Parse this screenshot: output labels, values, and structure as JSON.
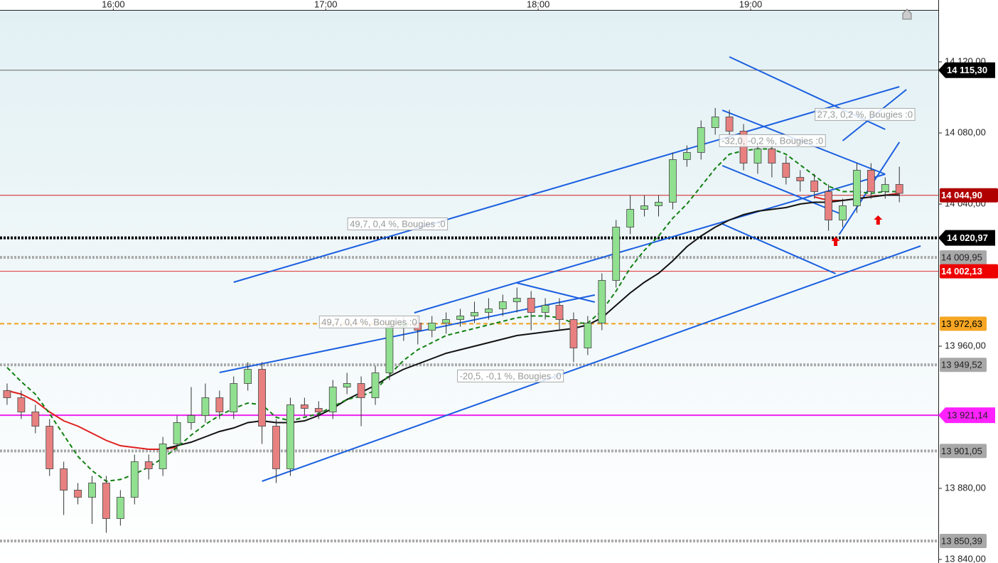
{
  "chart_data": {
    "type": "candlestick",
    "x": [
      "15:30",
      "15:34",
      "15:38",
      "15:42",
      "15:46",
      "15:50",
      "15:54",
      "15:58",
      "16:02",
      "16:06",
      "16:10",
      "16:14",
      "16:18",
      "16:22",
      "16:26",
      "16:30",
      "16:34",
      "16:38",
      "16:42",
      "16:46",
      "16:50",
      "16:54",
      "16:58",
      "17:02",
      "17:06",
      "17:10",
      "17:14",
      "17:18",
      "17:22",
      "17:26",
      "17:30",
      "17:34",
      "17:38",
      "17:42",
      "17:46",
      "17:50",
      "17:54",
      "17:58",
      "18:02",
      "18:06",
      "18:10",
      "18:14",
      "18:18",
      "18:22",
      "18:26",
      "18:30",
      "18:34",
      "18:38",
      "18:42",
      "18:46",
      "18:50",
      "18:54",
      "18:58",
      "19:02",
      "19:06",
      "19:10",
      "19:14",
      "19:18",
      "19:22",
      "19:26",
      "19:30",
      "19:34",
      "19:38",
      "19:42"
    ],
    "open": [
      13935,
      13931,
      13923,
      13915,
      13891,
      13879,
      13875,
      13883,
      13863,
      13875,
      13895,
      13891,
      13905,
      13917,
      13921,
      13931,
      13923,
      13939,
      13947,
      13915,
      13891,
      13927,
      13925,
      13923,
      13937,
      13939,
      13931,
      13945,
      13971,
      13973,
      13969,
      13973,
      13975,
      13977,
      13979,
      13981,
      13985,
      13987,
      13979,
      13983,
      13975,
      13959,
      13973,
      13997,
      14027,
      14037,
      14039,
      14041,
      14065,
      14069,
      14083,
      14089,
      14081,
      14063,
      14071,
      14063,
      14055,
      14053,
      14047,
      14031,
      14039,
      14059,
      14047,
      14051
    ],
    "high": [
      13939,
      13935,
      13927,
      13919,
      13895,
      13883,
      13887,
      13887,
      13879,
      13899,
      13899,
      13909,
      13921,
      13937,
      13939,
      13935,
      13943,
      13951,
      13951,
      13919,
      13931,
      13931,
      13929,
      13941,
      13945,
      13943,
      13949,
      13975,
      13977,
      13977,
      13977,
      13979,
      13981,
      13985,
      13987,
      13989,
      13993,
      13991,
      13987,
      13987,
      13979,
      13977,
      14001,
      14031,
      14045,
      14045,
      14045,
      14069,
      14073,
      14087,
      14094,
      14093,
      14085,
      14075,
      14075,
      14067,
      14059,
      14057,
      14051,
      14043,
      14063,
      14063,
      14055,
      14061
    ],
    "low": [
      13927,
      13919,
      13911,
      13887,
      13865,
      13871,
      13860,
      13855,
      13859,
      13871,
      13885,
      13887,
      13901,
      13913,
      13917,
      13919,
      13919,
      13935,
      13905,
      13883,
      13887,
      13921,
      13919,
      13919,
      13933,
      13915,
      13927,
      13941,
      13963,
      13961,
      13965,
      13967,
      13971,
      13973,
      13975,
      13977,
      13979,
      13969,
      13975,
      13969,
      13951,
      13955,
      13969,
      13993,
      14023,
      14033,
      14033,
      14037,
      14061,
      14065,
      14079,
      14077,
      14059,
      14057,
      14055,
      14051,
      14047,
      14043,
      14025,
      14027,
      14035,
      14043,
      14043,
      14041
    ],
    "close": [
      13931,
      13923,
      13915,
      13891,
      13879,
      13875,
      13883,
      13863,
      13875,
      13895,
      13891,
      13905,
      13917,
      13921,
      13931,
      13923,
      13939,
      13947,
      13915,
      13891,
      13927,
      13925,
      13923,
      13937,
      13939,
      13931,
      13945,
      13971,
      13973,
      13969,
      13973,
      13975,
      13977,
      13979,
      13981,
      13985,
      13987,
      13979,
      13983,
      13975,
      13959,
      13973,
      13997,
      14027,
      14037,
      14039,
      14041,
      14065,
      14069,
      14083,
      14089,
      14081,
      14063,
      14071,
      14063,
      14055,
      14053,
      14047,
      14031,
      14039,
      14059,
      14047,
      14051,
      14046
    ],
    "up_color": "#90e090",
    "down_color": "#e88080",
    "xlim": [
      "15:28",
      "19:53"
    ],
    "xticks": [
      "16:00",
      "17:00",
      "18:00",
      "19:00"
    ],
    "ylim": [
      13838,
      14148.8
    ],
    "yticks": [
      {
        "value": 13840,
        "label": "13 840,00"
      },
      {
        "value": 13880,
        "label": "13 880,00"
      },
      {
        "value": 13960,
        "label": "13 960,00"
      },
      {
        "value": 14040,
        "label": "14 040,00"
      },
      {
        "value": 14080,
        "label": "14 080,00"
      },
      {
        "value": 14120,
        "label": "14 120,00"
      }
    ],
    "series": [
      {
        "color": "#e02020",
        "style": "solid",
        "values": [
          13935,
          13933,
          13929,
          13923,
          13918,
          13915,
          13911,
          13907,
          13904,
          13903,
          13902,
          13902,
          13903,
          null,
          null,
          null,
          null,
          null,
          null,
          null,
          null,
          null,
          null,
          null,
          null,
          null,
          null,
          null,
          null,
          null,
          null,
          null,
          null,
          null,
          null,
          null,
          null,
          null,
          null,
          null,
          null,
          null,
          null,
          null,
          null,
          null,
          null,
          null,
          null,
          null,
          null,
          null,
          null,
          null,
          null,
          null,
          null,
          14044,
          14042,
          14042,
          14043,
          14044,
          14045,
          14046
        ]
      },
      {
        "color": "#111111",
        "style": "solid",
        "values": [
          null,
          null,
          null,
          null,
          null,
          null,
          null,
          null,
          null,
          null,
          null,
          13902,
          13904,
          13906,
          13909,
          13912,
          13914,
          13917,
          13918,
          13917,
          13917,
          13918,
          13921,
          13925,
          13930,
          13934,
          13938,
          13943,
          13947,
          13950,
          13953,
          13956,
          13958,
          13960,
          13962,
          13964,
          13966,
          13967,
          13968,
          13969,
          13970,
          13972,
          13976,
          13983,
          13990,
          13996,
          14001,
          14008,
          14016,
          14022,
          14027,
          14031,
          14034,
          14036,
          14037,
          14038,
          14040,
          14041,
          14041,
          14042,
          14043,
          14044,
          14045,
          14045
        ]
      },
      {
        "color": "#108010",
        "style": "dashed",
        "values": [
          13948,
          13940,
          13933,
          13922,
          13910,
          13898,
          13890,
          13884,
          13885,
          13888,
          13892,
          13897,
          13903,
          13910,
          13916,
          13921,
          13925,
          13928,
          13927,
          13920,
          13918,
          13920,
          13922,
          13926,
          13930,
          13932,
          13935,
          13944,
          13952,
          13958,
          13962,
          13966,
          13968,
          13970,
          13972,
          13974,
          13976,
          13977,
          13977,
          13976,
          13973,
          13973,
          13980,
          13991,
          14004,
          14014,
          14022,
          14032,
          14040,
          14050,
          14060,
          14068,
          14070,
          14071,
          14071,
          14068,
          14062,
          14056,
          14050,
          14047,
          14047,
          14046,
          14047,
          14047
        ]
      }
    ],
    "levels": [
      {
        "value": 14115.3,
        "label": "14 115,30",
        "color": "#666666",
        "style": "solid",
        "tag_bg": "#000000",
        "tag_fg": "#ffffff",
        "arrow": true
      },
      {
        "value": 14044.9,
        "label": "14 044,90",
        "color": "#d02020",
        "style": "solid",
        "tag_bg": "#b00000",
        "tag_fg": "#ffffff",
        "arrow": false
      },
      {
        "value": 14020.97,
        "label": "14 020,97",
        "color": "#000000",
        "style": "dotted",
        "tag_bg": "#000000",
        "tag_fg": "#ffffff",
        "arrow": true
      },
      {
        "value": 14009.95,
        "label": "14 009,95",
        "color": "#aaaaaa",
        "style": "dotted",
        "tag_bg": "#a8a8a8",
        "tag_fg": "#222222",
        "arrow": false
      },
      {
        "value": 14002.13,
        "label": "14 002,13",
        "color": "#e03030",
        "style": "solid",
        "tag_bg": "#ee0000",
        "tag_fg": "#ffffff",
        "arrow": false
      },
      {
        "value": 13972.63,
        "label": "13 972,63",
        "color": "#f0a020",
        "style": "dashed",
        "tag_bg": "#f5a623",
        "tag_fg": "#000000",
        "arrow": false
      },
      {
        "value": 13949.52,
        "label": "13 949,52",
        "color": "#aaaaaa",
        "style": "dotted",
        "tag_bg": "#a8a8a8",
        "tag_fg": "#222222",
        "arrow": false
      },
      {
        "value": 13921.14,
        "label": "13 921,14",
        "color": "#ee22ee",
        "style": "solid",
        "tag_bg": "#ff22ff",
        "tag_fg": "#222222",
        "arrow": true
      },
      {
        "value": 13901.05,
        "label": "13 901,05",
        "color": "#aaaaaa",
        "style": "dotted",
        "tag_bg": "#a8a8a8",
        "tag_fg": "#222222",
        "arrow": false
      },
      {
        "value": 13850.39,
        "label": "13 850,39",
        "color": "#aaaaaa",
        "style": "dotted",
        "tag_bg": "#a8a8a8",
        "tag_fg": "#222222",
        "arrow": false
      }
    ],
    "trendlines": [
      {
        "x": [
          "16:34",
          "19:42"
        ],
        "y": [
          13996,
          14106
        ]
      },
      {
        "x": [
          "16:42",
          "19:48"
        ],
        "y": [
          13884,
          14016.4
        ]
      },
      {
        "x": [
          "16:30",
          "18:16"
        ],
        "y": [
          13945.2,
          13988.8
        ]
      },
      {
        "x": [
          "17:25",
          "19:38"
        ],
        "y": [
          13978.8,
          14056.8
        ]
      },
      {
        "x": [
          "17:54",
          "18:16"
        ],
        "y": [
          13995.6,
          13984.8
        ]
      },
      {
        "x": [
          "18:54",
          "19:38"
        ],
        "y": [
          14122.8,
          14082
        ]
      },
      {
        "x": [
          "18:52",
          "19:38"
        ],
        "y": [
          14092.8,
          14056.8
        ]
      },
      {
        "x": [
          "18:52",
          "19:25"
        ],
        "y": [
          14061.6,
          14034.8
        ]
      },
      {
        "x": [
          "18:52",
          "19:24"
        ],
        "y": [
          14028.8,
          14000.8
        ]
      },
      {
        "x": [
          "19:26",
          "19:44"
        ],
        "y": [
          14075.6,
          14104.4
        ]
      },
      {
        "x": [
          "19:25",
          "19:42"
        ],
        "y": [
          14022.8,
          14074.8
        ]
      }
    ],
    "trend_color": "#1a5fe0",
    "annotations": [
      {
        "x": "17:06",
        "y": 14028.4,
        "text": "49,7, 0,4 %, Bougies :0"
      },
      {
        "x": "16:58",
        "y": 13973.2,
        "text": "49,7, 0,4 %, Bougies :0"
      },
      {
        "x": "17:37",
        "y": 13942.8,
        "text": "-20,5, -0,1 %, Bougies :0"
      },
      {
        "x": "18:51",
        "y": 14075.2,
        "text": "-32,0, -0,2 %, Bougies :0"
      },
      {
        "x": "19:18",
        "y": 14090,
        "text": "27,3, 0,2 %, Bougies :0"
      }
    ],
    "signals": [
      {
        "x": "19:24",
        "y": 14018.8
      },
      {
        "x": "19:36",
        "y": 14030.8
      }
    ],
    "signal_color": "#ee0000"
  }
}
